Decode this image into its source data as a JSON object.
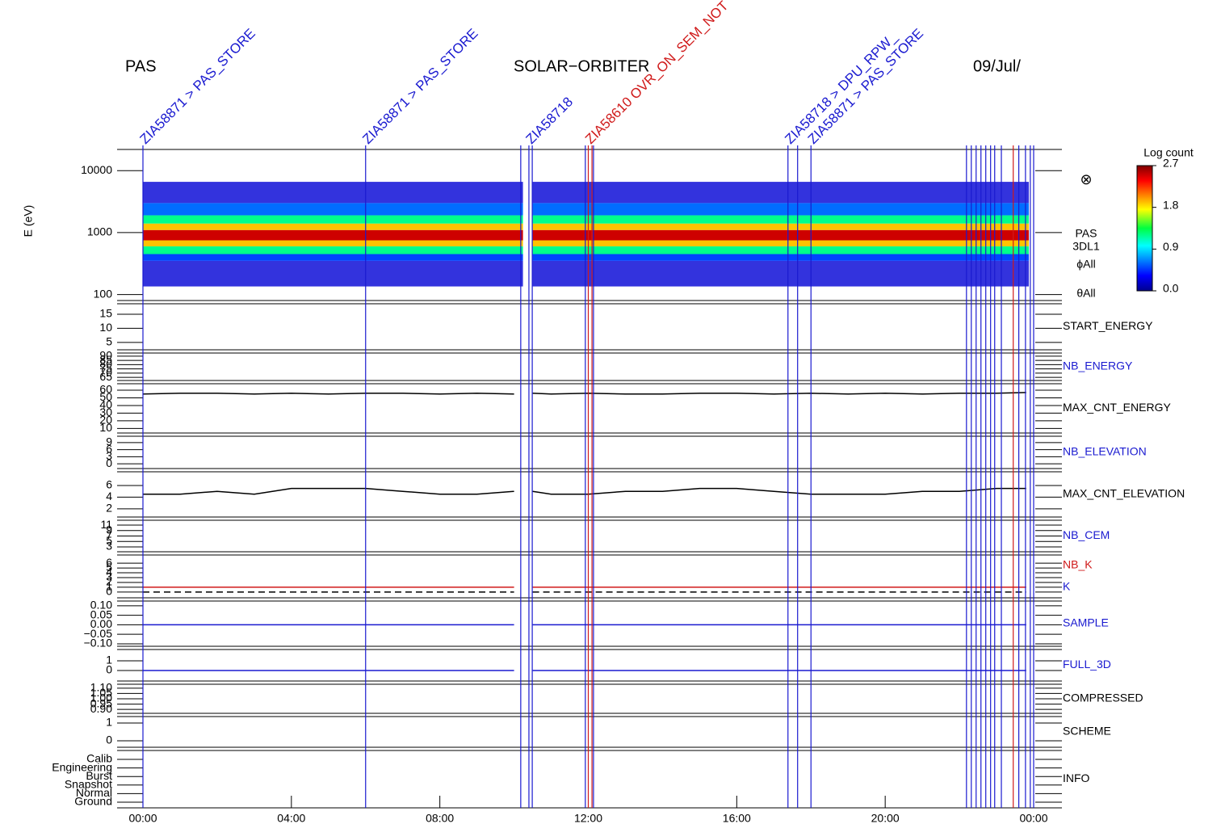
{
  "header": {
    "instrument": "PAS",
    "mission": "SOLAR−ORBITER",
    "date": "09/Jul/"
  },
  "chart_data": {
    "type": "multi-panel",
    "xlim": [
      0,
      24
    ],
    "xticks": [
      {
        "value": 0,
        "label": "00:00"
      },
      {
        "value": 4,
        "label": "04:00"
      },
      {
        "value": 8,
        "label": "08:00"
      },
      {
        "value": 12,
        "label": "12:00"
      },
      {
        "value": 16,
        "label": "16:00"
      },
      {
        "value": 20,
        "label": "20:00"
      },
      {
        "value": 24,
        "label": "00:00"
      }
    ],
    "x": [
      0,
      1,
      2,
      3,
      4,
      5,
      6,
      7,
      8,
      9,
      10,
      10.24,
      10.5,
      11,
      12,
      13,
      14,
      15,
      16,
      17,
      18,
      19,
      20,
      21,
      22,
      23,
      23.8
    ],
    "events": [
      {
        "time": 0,
        "color": "#1a1ad0",
        "label": "ZIA58871 > PAS_STORE"
      },
      {
        "time": 6.0,
        "color": "#1a1ad0",
        "label": "ZIA58871 > PAS_STORE"
      },
      {
        "time": 10.18,
        "color": "#1a1ad0"
      },
      {
        "time": 10.4,
        "color": "#1a1ad0",
        "label": "ZIA58718"
      },
      {
        "time": 10.49,
        "color": "#1a1ad0"
      },
      {
        "time": 11.92,
        "color": "#1a1ad0"
      },
      {
        "time": 12.0,
        "color": "#d01a1a",
        "label": "ZIA58610 OVR_ON_SEM_NOT"
      },
      {
        "time": 12.1,
        "color": "#d01a1a"
      },
      {
        "time": 12.14,
        "color": "#1a1ad0"
      },
      {
        "time": 17.38,
        "color": "#1a1ad0",
        "label": "ZIA58718 > DPU_RPW_"
      },
      {
        "time": 17.64,
        "color": "#1a1ad0"
      },
      {
        "time": 18.0,
        "color": "#1a1ad0",
        "label": "ZIA58871 > PAS_STORE"
      },
      {
        "time": 22.19,
        "color": "#1a1ad0"
      },
      {
        "time": 22.32,
        "color": "#1a1ad0"
      },
      {
        "time": 22.45,
        "color": "#1a1ad0"
      },
      {
        "time": 22.58,
        "color": "#1a1ad0"
      },
      {
        "time": 22.71,
        "color": "#1a1ad0"
      },
      {
        "time": 22.84,
        "color": "#1a1ad0"
      },
      {
        "time": 22.95,
        "color": "#1a1ad0"
      },
      {
        "time": 23.13,
        "color": "#1a1ad0"
      },
      {
        "time": 23.45,
        "color": "#d01a1a"
      },
      {
        "time": 23.6,
        "color": "#1a1ad0"
      },
      {
        "time": 23.78,
        "color": "#1a1ad0"
      },
      {
        "time": 23.91,
        "color": "#1a1ad0"
      },
      {
        "time": 24,
        "color": "#1a1ad0"
      }
    ],
    "colorbar": {
      "title": "Log count",
      "lim": [
        0,
        2.7
      ],
      "ticks": [
        {
          "value": 0,
          "label": "0.0"
        },
        0.9,
        1.8,
        2.7
      ]
    },
    "panels": [
      {
        "ylabel": "E (eV)",
        "log": true,
        "ylim": [
          80,
          22000
        ],
        "yticks": [
          100,
          1000,
          10000
        ],
        "symbol": "⊗",
        "labels": [
          "PAS",
          "3DL1",
          "ϕAll",
          "θAll"
        ],
        "label_colors": [
          "#000",
          "#000",
          "#000",
          "#000"
        ],
        "segments": [
          [
            0,
            10.24
          ],
          [
            10.5,
            23.87
          ]
        ],
        "bands": [
          {
            "energy_low": 135,
            "energy_high": 350,
            "log_count": 0.2
          },
          {
            "energy_low": 350,
            "energy_high": 450,
            "log_count": 0.5
          },
          {
            "energy_low": 450,
            "energy_high": 600,
            "log_count": 1.2
          },
          {
            "energy_low": 600,
            "energy_high": 750,
            "log_count": 1.9
          },
          {
            "energy_low": 750,
            "energy_high": 1100,
            "log_count": 2.5
          },
          {
            "energy_low": 1100,
            "energy_high": 1400,
            "log_count": 1.9
          },
          {
            "energy_low": 1400,
            "energy_high": 1900,
            "log_count": 1.2
          },
          {
            "energy_low": 1900,
            "energy_high": 3000,
            "log_count": 0.6
          },
          {
            "energy_low": 3000,
            "energy_high": 6600,
            "log_count": 0.2
          }
        ]
      },
      {
        "ylim": [
          2.4,
          18.7
        ],
        "yticks": [
          5,
          10,
          15
        ],
        "labels": [
          "START_ENERGY"
        ],
        "label_colors": [
          "#000"
        ]
      },
      {
        "ylim": [
          61.3,
          93.7
        ],
        "yticks": [
          65,
          70,
          75,
          80,
          85,
          90
        ],
        "labels": [
          "NB_ENERGY"
        ],
        "label_colors": [
          "#1a1ad0"
        ]
      },
      {
        "ylim": [
          4,
          68.5
        ],
        "yticks": [
          10,
          20,
          30,
          40,
          50,
          60
        ],
        "labels": [
          "MAX_CNT_ENERGY"
        ],
        "label_colors": [
          "#000"
        ],
        "lines": [
          {
            "color": "#000",
            "values": [
              55,
              56,
              56,
              55,
              56,
              55,
              56,
              56,
              55,
              56,
              55,
              null,
              56,
              55,
              56,
              55,
              55,
              56,
              56,
              55,
              56,
              55,
              56,
              55,
              56,
              56,
              57
            ]
          }
        ]
      },
      {
        "ylim": [
          -2,
          11.7
        ],
        "yticks": [
          0,
          3,
          6,
          9
        ],
        "labels": [
          "NB_ELEVATION"
        ],
        "label_colors": [
          "#1a1ad0"
        ]
      },
      {
        "ylim": [
          0.6,
          8.35
        ],
        "yticks": [
          2,
          4,
          6
        ],
        "labels": [
          "MAX_CNT_ELEVATION"
        ],
        "label_colors": [
          "#000"
        ],
        "lines": [
          {
            "color": "#000",
            "values": [
              4.5,
              4.5,
              5,
              4.5,
              5.5,
              5.5,
              5.5,
              5,
              4.5,
              4.5,
              5,
              null,
              5,
              4.5,
              4.5,
              5,
              5,
              5.5,
              5.5,
              5,
              4.5,
              4.5,
              4.5,
              5,
              5,
              5.5,
              5.5
            ]
          }
        ]
      },
      {
        "ylim": [
          1.2,
          12.8
        ],
        "yticks": [
          3,
          5,
          7,
          9,
          11
        ],
        "labels": [
          "NB_CEM"
        ],
        "label_colors": [
          "#1a1ad0"
        ]
      },
      {
        "ylim": [
          -1.2,
          7.7
        ],
        "yticks": [
          0,
          1,
          2,
          3,
          4,
          5,
          6
        ],
        "labels": [
          "NB_K",
          "K"
        ],
        "label_colors": [
          "#d01a1a",
          "#1a1ad0"
        ],
        "lines": [
          {
            "color": "#d01a1a",
            "values": [
              1,
              1,
              1,
              1,
              1,
              1,
              1,
              1,
              1,
              1,
              1,
              null,
              1,
              1,
              1,
              1,
              1,
              1,
              1,
              1,
              1,
              1,
              1,
              1,
              1,
              1,
              1
            ]
          },
          {
            "color": "#000",
            "dashed": true,
            "values": [
              0,
              0,
              0,
              0,
              0,
              0,
              0,
              0,
              0,
              0,
              0,
              null,
              0,
              0,
              0,
              0,
              0,
              0,
              0,
              0,
              0,
              0,
              0,
              0,
              0,
              0,
              0
            ]
          }
        ]
      },
      {
        "ylim": [
          -0.113,
          0.125
        ],
        "yticks": [
          {
            "value": -0.1,
            "label": "−0.10"
          },
          {
            "value": -0.05,
            "label": "−0.05"
          },
          {
            "value": 0,
            "label": "0.00"
          },
          0.05,
          {
            "value": 0.1,
            "label": "0.10"
          }
        ],
        "labels": [
          "SAMPLE"
        ],
        "label_colors": [
          "#1a1ad0"
        ],
        "lines": [
          {
            "color": "#1a1ad0",
            "values": [
              0,
              0,
              0,
              0,
              0,
              0,
              0,
              0,
              0,
              0,
              0,
              null,
              0,
              0,
              0,
              0,
              0,
              0,
              0,
              0,
              0,
              0,
              0,
              0,
              0,
              0,
              0
            ]
          }
        ]
      },
      {
        "ylim": [
          -1.08,
          2.17
        ],
        "yticks": [
          0,
          1
        ],
        "labels": [
          "FULL_3D"
        ],
        "label_colors": [
          "#1a1ad0"
        ],
        "lines": [
          {
            "color": "#1a1ad0",
            "values": [
              0,
              0,
              0,
              0,
              0,
              0,
              0,
              0,
              0,
              0,
              0,
              null,
              0,
              0,
              0,
              0,
              0,
              0,
              0,
              0,
              0,
              0,
              0,
              0,
              0,
              0,
              0
            ]
          }
        ]
      },
      {
        "ylim": [
          0.863,
          1.137
        ],
        "yticks": [
          {
            "value": 0.9,
            "label": "0.90"
          },
          0.95,
          {
            "value": 1,
            "label": "1.00"
          },
          1.05,
          {
            "value": 1.1,
            "label": "1.10"
          }
        ],
        "labels": [
          "COMPRESSED"
        ],
        "label_colors": [
          "#000"
        ]
      },
      {
        "ylim": [
          -0.36,
          1.36
        ],
        "yticks": [
          0,
          1
        ],
        "labels": [
          "SCHEME"
        ],
        "label_colors": [
          "#000"
        ]
      },
      {
        "ylim": [
          -0.66,
          6.04
        ],
        "yticks": [
          {
            "value": 0,
            "label": "Ground"
          },
          {
            "value": 1,
            "label": "Normal"
          },
          {
            "value": 2,
            "label": "Snapshot"
          },
          {
            "value": 3,
            "label": "Burst"
          },
          {
            "value": 4,
            "label": "Engineering"
          },
          {
            "value": 5,
            "label": "Calib"
          }
        ],
        "labels": [
          "INFO"
        ],
        "label_colors": [
          "#000"
        ]
      }
    ]
  }
}
